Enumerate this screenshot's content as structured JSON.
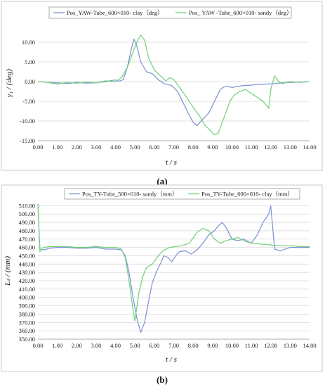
{
  "chart_data": [
    {
      "type": "line",
      "caption": "(a)",
      "xlabel": "t / s",
      "ylabel": "γ₁ / (deg)",
      "xlim": [
        0,
        14
      ],
      "ylim": [
        -15,
        15
      ],
      "x_ticks": [
        "0.00",
        "1.00",
        "2.00",
        "3.00",
        "4.00",
        "5.00",
        "6.00",
        "7.00",
        "8.00",
        "9.00",
        "10.00",
        "11.00",
        "12.00",
        "13.00",
        "14.00"
      ],
      "y_ticks": [
        "10.00",
        "5.00",
        "0.00",
        "-5.00",
        "-10.00",
        "-15.00"
      ],
      "y_tick_values": [
        10,
        5,
        0,
        -5,
        -10,
        -15
      ],
      "legend_position": "top",
      "series": [
        {
          "name": "Pos_YAW-Tube_600×010- clay（deg）",
          "color": "#7b8fd6",
          "x": [
            0,
            0.5,
            1,
            1.5,
            2,
            2.5,
            3,
            3.5,
            3.8,
            4,
            4.2,
            4.4,
            4.6,
            4.8,
            4.95,
            5.1,
            5.3,
            5.6,
            5.9,
            6.2,
            6.5,
            6.9,
            7.2,
            7.5,
            7.8,
            8,
            8.2,
            8.5,
            8.8,
            9.1,
            9.4,
            9.6,
            9.8,
            10,
            10.3,
            10.6,
            11,
            11.4,
            11.8,
            12.2,
            12.6,
            13,
            13.5,
            14
          ],
          "y": [
            0,
            -0.2,
            -0.3,
            -0.5,
            -0.2,
            -0.4,
            -0.3,
            0,
            0.3,
            0.4,
            0.1,
            0.5,
            3.5,
            8,
            10.8,
            9,
            5,
            2.5,
            2,
            0.5,
            -0.5,
            -1,
            -2.5,
            -5.5,
            -8.5,
            -10.3,
            -11.2,
            -9.5,
            -8,
            -5,
            -2,
            -1.3,
            -1.2,
            -1.5,
            -1.2,
            -1,
            -0.9,
            -0.7,
            -0.6,
            -0.5,
            -0.3,
            -0.2,
            -0.1,
            0
          ]
        },
        {
          "name": "Pos_ YAW -Tube_600×010- sandy（deg）",
          "color": "#6fd07a",
          "x": [
            0,
            0.5,
            1,
            1.5,
            2,
            2.5,
            3,
            3.5,
            4,
            4.3,
            4.6,
            4.9,
            5.1,
            5.3,
            5.5,
            5.7,
            6,
            6.3,
            6.6,
            6.8,
            7,
            7.3,
            7.6,
            8,
            8.3,
            8.6,
            8.9,
            9.1,
            9.3,
            9.6,
            9.9,
            10.1,
            10.4,
            10.7,
            11,
            11.3,
            11.6,
            11.9,
            12,
            12.2,
            12.4,
            12.6,
            13,
            13.5,
            14
          ],
          "y": [
            0,
            -0.2,
            -0.6,
            -0.2,
            -0.4,
            -0.1,
            -0.3,
            0.2,
            0,
            1,
            3.5,
            7.5,
            10,
            11.8,
            10.5,
            6,
            3,
            1.5,
            0.2,
            1,
            0.5,
            -1.5,
            -3.5,
            -6.5,
            -8.5,
            -11,
            -12.5,
            -13.5,
            -13,
            -9,
            -5,
            -3.5,
            -2.5,
            -2,
            -3,
            -4,
            -5,
            -6.8,
            -2,
            1.5,
            0,
            -0.5,
            0,
            -0.2,
            0
          ]
        }
      ]
    },
    {
      "type": "line",
      "caption": "(b)",
      "xlabel": "t / s",
      "ylabel": "Lₛ / (mm)",
      "xlim": [
        0,
        14
      ],
      "ylim": [
        350,
        512
      ],
      "x_ticks": [
        "0.00",
        "1.00",
        "2.00",
        "3.00",
        "4.00",
        "5.00",
        "6.00",
        "7.00",
        "8.00",
        "9.00",
        "10.00",
        "11.00",
        "12.00",
        "13.00",
        "14.00"
      ],
      "y_ticks": [
        "510.00",
        "500.00",
        "490.00",
        "480.00",
        "470.00",
        "460.00",
        "450.00",
        "440.00",
        "430.00",
        "420.00",
        "410.00",
        "400.00",
        "390.00",
        "380.00",
        "370.00",
        "360.00",
        "350.00"
      ],
      "y_tick_values": [
        510,
        500,
        490,
        480,
        470,
        460,
        450,
        440,
        430,
        420,
        410,
        400,
        390,
        380,
        370,
        360,
        350
      ],
      "legend_position": "top",
      "series": [
        {
          "name": "Pos_TY-Tube_500×010- sandy（mm）",
          "color": "#7b8fd6",
          "x": [
            0,
            0.1,
            0.3,
            0.6,
            1,
            1.5,
            2,
            2.5,
            3,
            3.5,
            4,
            4.3,
            4.5,
            4.7,
            4.9,
            5.1,
            5.3,
            5.5,
            5.7,
            5.9,
            6.1,
            6.3,
            6.5,
            6.7,
            6.9,
            7.1,
            7.3,
            7.6,
            7.9,
            8.2,
            8.5,
            8.8,
            9.1,
            9.3,
            9.5,
            9.7,
            10,
            10.3,
            10.6,
            11,
            11.3,
            11.6,
            11.9,
            12,
            12.2,
            12.5,
            13,
            13.5,
            14
          ],
          "y": [
            512,
            458,
            457,
            459,
            460,
            460,
            459,
            459,
            460,
            458,
            458,
            457,
            450,
            430,
            400,
            375,
            358,
            370,
            395,
            418,
            430,
            440,
            450,
            448,
            443,
            450,
            455,
            456,
            452,
            457,
            465,
            475,
            480,
            486,
            490,
            484,
            470,
            468,
            470,
            465,
            475,
            490,
            500,
            510,
            458,
            456,
            460,
            460,
            460
          ]
        },
        {
          "name": "Pos_TY-Tube_600×010- clay（mm）",
          "color": "#6fd07a",
          "x": [
            0,
            0.1,
            0.3,
            0.6,
            1,
            1.5,
            2,
            2.5,
            3,
            3.5,
            4,
            4.3,
            4.5,
            4.7,
            4.9,
            5,
            5.2,
            5.4,
            5.6,
            5.9,
            6.2,
            6.5,
            6.8,
            7.1,
            7.4,
            7.8,
            8.2,
            8.5,
            8.8,
            9.1,
            9.4,
            9.7,
            10,
            10.3,
            10.6,
            11,
            11.5,
            12,
            12.5,
            13,
            13.5,
            14
          ],
          "y": [
            512,
            455,
            460,
            461,
            461,
            461,
            460,
            460,
            461,
            460,
            460,
            458,
            448,
            420,
            385,
            372,
            405,
            425,
            436,
            440,
            450,
            457,
            460,
            461,
            462,
            465,
            478,
            483,
            480,
            470,
            465,
            468,
            470,
            472,
            468,
            465,
            464,
            463,
            462,
            462,
            461,
            461
          ]
        }
      ]
    }
  ]
}
